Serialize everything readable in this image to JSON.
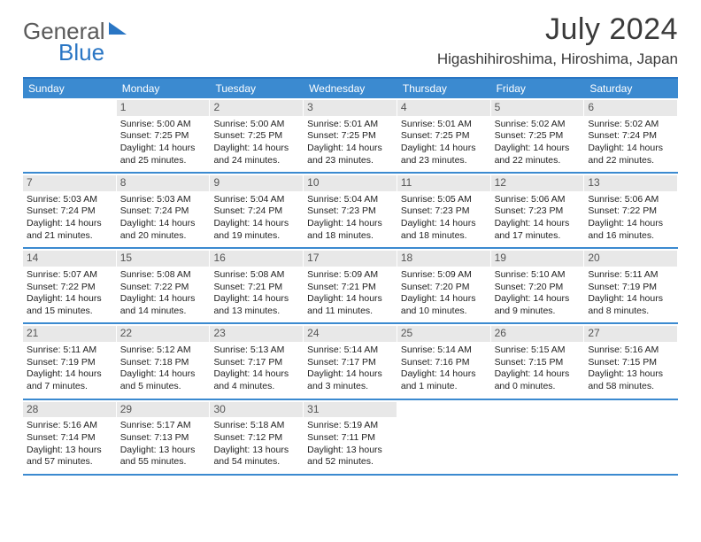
{
  "brand": {
    "word1": "General",
    "word2": "Blue"
  },
  "title": "July 2024",
  "location": "Higashihiroshima, Hiroshima, Japan",
  "colors": {
    "accent": "#3b8ad0",
    "accent_dark": "#2a76c4",
    "daynum_bg": "#e8e8e8",
    "text": "#333333"
  },
  "day_headers": [
    "Sunday",
    "Monday",
    "Tuesday",
    "Wednesday",
    "Thursday",
    "Friday",
    "Saturday"
  ],
  "weeks": [
    [
      {
        "n": "",
        "sunrise": "",
        "sunset": "",
        "daylight": ""
      },
      {
        "n": "1",
        "sunrise": "Sunrise: 5:00 AM",
        "sunset": "Sunset: 7:25 PM",
        "daylight": "Daylight: 14 hours and 25 minutes."
      },
      {
        "n": "2",
        "sunrise": "Sunrise: 5:00 AM",
        "sunset": "Sunset: 7:25 PM",
        "daylight": "Daylight: 14 hours and 24 minutes."
      },
      {
        "n": "3",
        "sunrise": "Sunrise: 5:01 AM",
        "sunset": "Sunset: 7:25 PM",
        "daylight": "Daylight: 14 hours and 23 minutes."
      },
      {
        "n": "4",
        "sunrise": "Sunrise: 5:01 AM",
        "sunset": "Sunset: 7:25 PM",
        "daylight": "Daylight: 14 hours and 23 minutes."
      },
      {
        "n": "5",
        "sunrise": "Sunrise: 5:02 AM",
        "sunset": "Sunset: 7:25 PM",
        "daylight": "Daylight: 14 hours and 22 minutes."
      },
      {
        "n": "6",
        "sunrise": "Sunrise: 5:02 AM",
        "sunset": "Sunset: 7:24 PM",
        "daylight": "Daylight: 14 hours and 22 minutes."
      }
    ],
    [
      {
        "n": "7",
        "sunrise": "Sunrise: 5:03 AM",
        "sunset": "Sunset: 7:24 PM",
        "daylight": "Daylight: 14 hours and 21 minutes."
      },
      {
        "n": "8",
        "sunrise": "Sunrise: 5:03 AM",
        "sunset": "Sunset: 7:24 PM",
        "daylight": "Daylight: 14 hours and 20 minutes."
      },
      {
        "n": "9",
        "sunrise": "Sunrise: 5:04 AM",
        "sunset": "Sunset: 7:24 PM",
        "daylight": "Daylight: 14 hours and 19 minutes."
      },
      {
        "n": "10",
        "sunrise": "Sunrise: 5:04 AM",
        "sunset": "Sunset: 7:23 PM",
        "daylight": "Daylight: 14 hours and 18 minutes."
      },
      {
        "n": "11",
        "sunrise": "Sunrise: 5:05 AM",
        "sunset": "Sunset: 7:23 PM",
        "daylight": "Daylight: 14 hours and 18 minutes."
      },
      {
        "n": "12",
        "sunrise": "Sunrise: 5:06 AM",
        "sunset": "Sunset: 7:23 PM",
        "daylight": "Daylight: 14 hours and 17 minutes."
      },
      {
        "n": "13",
        "sunrise": "Sunrise: 5:06 AM",
        "sunset": "Sunset: 7:22 PM",
        "daylight": "Daylight: 14 hours and 16 minutes."
      }
    ],
    [
      {
        "n": "14",
        "sunrise": "Sunrise: 5:07 AM",
        "sunset": "Sunset: 7:22 PM",
        "daylight": "Daylight: 14 hours and 15 minutes."
      },
      {
        "n": "15",
        "sunrise": "Sunrise: 5:08 AM",
        "sunset": "Sunset: 7:22 PM",
        "daylight": "Daylight: 14 hours and 14 minutes."
      },
      {
        "n": "16",
        "sunrise": "Sunrise: 5:08 AM",
        "sunset": "Sunset: 7:21 PM",
        "daylight": "Daylight: 14 hours and 13 minutes."
      },
      {
        "n": "17",
        "sunrise": "Sunrise: 5:09 AM",
        "sunset": "Sunset: 7:21 PM",
        "daylight": "Daylight: 14 hours and 11 minutes."
      },
      {
        "n": "18",
        "sunrise": "Sunrise: 5:09 AM",
        "sunset": "Sunset: 7:20 PM",
        "daylight": "Daylight: 14 hours and 10 minutes."
      },
      {
        "n": "19",
        "sunrise": "Sunrise: 5:10 AM",
        "sunset": "Sunset: 7:20 PM",
        "daylight": "Daylight: 14 hours and 9 minutes."
      },
      {
        "n": "20",
        "sunrise": "Sunrise: 5:11 AM",
        "sunset": "Sunset: 7:19 PM",
        "daylight": "Daylight: 14 hours and 8 minutes."
      }
    ],
    [
      {
        "n": "21",
        "sunrise": "Sunrise: 5:11 AM",
        "sunset": "Sunset: 7:19 PM",
        "daylight": "Daylight: 14 hours and 7 minutes."
      },
      {
        "n": "22",
        "sunrise": "Sunrise: 5:12 AM",
        "sunset": "Sunset: 7:18 PM",
        "daylight": "Daylight: 14 hours and 5 minutes."
      },
      {
        "n": "23",
        "sunrise": "Sunrise: 5:13 AM",
        "sunset": "Sunset: 7:17 PM",
        "daylight": "Daylight: 14 hours and 4 minutes."
      },
      {
        "n": "24",
        "sunrise": "Sunrise: 5:14 AM",
        "sunset": "Sunset: 7:17 PM",
        "daylight": "Daylight: 14 hours and 3 minutes."
      },
      {
        "n": "25",
        "sunrise": "Sunrise: 5:14 AM",
        "sunset": "Sunset: 7:16 PM",
        "daylight": "Daylight: 14 hours and 1 minute."
      },
      {
        "n": "26",
        "sunrise": "Sunrise: 5:15 AM",
        "sunset": "Sunset: 7:15 PM",
        "daylight": "Daylight: 14 hours and 0 minutes."
      },
      {
        "n": "27",
        "sunrise": "Sunrise: 5:16 AM",
        "sunset": "Sunset: 7:15 PM",
        "daylight": "Daylight: 13 hours and 58 minutes."
      }
    ],
    [
      {
        "n": "28",
        "sunrise": "Sunrise: 5:16 AM",
        "sunset": "Sunset: 7:14 PM",
        "daylight": "Daylight: 13 hours and 57 minutes."
      },
      {
        "n": "29",
        "sunrise": "Sunrise: 5:17 AM",
        "sunset": "Sunset: 7:13 PM",
        "daylight": "Daylight: 13 hours and 55 minutes."
      },
      {
        "n": "30",
        "sunrise": "Sunrise: 5:18 AM",
        "sunset": "Sunset: 7:12 PM",
        "daylight": "Daylight: 13 hours and 54 minutes."
      },
      {
        "n": "31",
        "sunrise": "Sunrise: 5:19 AM",
        "sunset": "Sunset: 7:11 PM",
        "daylight": "Daylight: 13 hours and 52 minutes."
      },
      {
        "n": "",
        "sunrise": "",
        "sunset": "",
        "daylight": ""
      },
      {
        "n": "",
        "sunrise": "",
        "sunset": "",
        "daylight": ""
      },
      {
        "n": "",
        "sunrise": "",
        "sunset": "",
        "daylight": ""
      }
    ]
  ]
}
